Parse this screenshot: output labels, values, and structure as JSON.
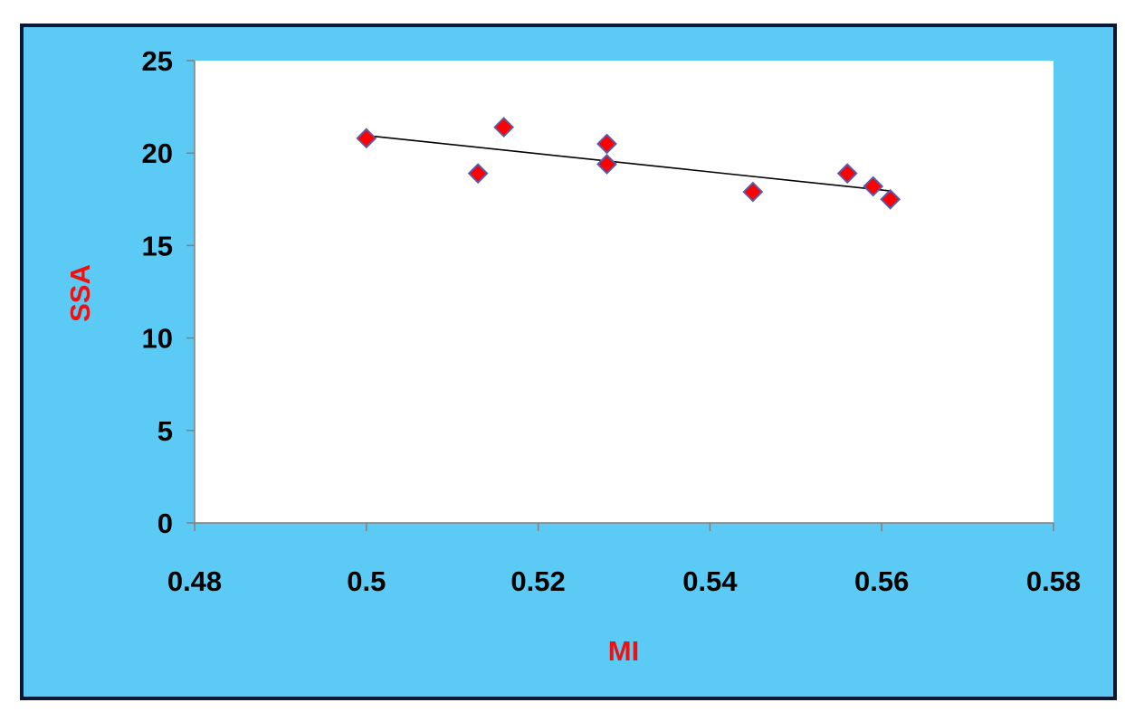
{
  "chart_data": {
    "type": "scatter",
    "title": "",
    "xlabel": "MI",
    "ylabel": "SSA",
    "xlim": [
      0.48,
      0.58
    ],
    "ylim": [
      0,
      25
    ],
    "x_ticks": [
      "0.48",
      "0.5",
      "0.52",
      "0.54",
      "0.56",
      "0.58"
    ],
    "y_ticks": [
      "0",
      "5",
      "10",
      "15",
      "20",
      "25"
    ],
    "grid": false,
    "legend": "none",
    "series": [
      {
        "x": [
          0.5,
          0.513,
          0.516,
          0.528,
          0.528,
          0.545,
          0.556,
          0.559,
          0.561
        ],
        "y": [
          20.8,
          18.9,
          21.4,
          20.5,
          19.4,
          17.9,
          18.9,
          18.2,
          17.5
        ],
        "marker": "diamond",
        "color": "#ff0000",
        "edge_color": "#5a5aa8"
      }
    ],
    "trendline": {
      "type": "linear",
      "x": [
        0.5,
        0.561
      ],
      "y": [
        20.95,
        17.95
      ],
      "color": "#000000"
    },
    "colors": {
      "frame_background": "#5bcbf5",
      "frame_border": "#0a1838",
      "plot_background": "#ffffff",
      "axis_title": "#ee1111",
      "axis_line": "#808080"
    }
  }
}
